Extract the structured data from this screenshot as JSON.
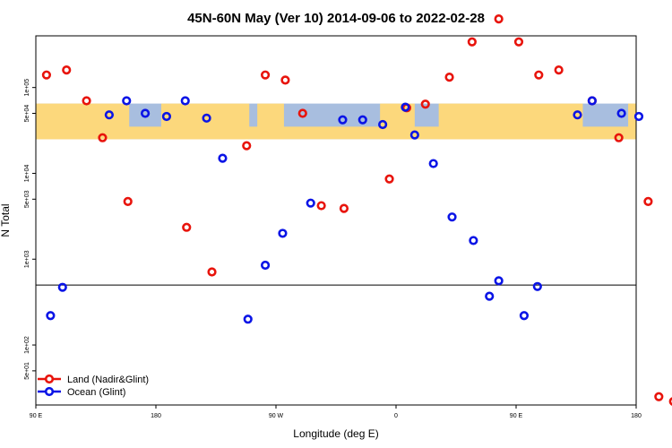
{
  "chart_data": {
    "type": "scatter",
    "title": "45N-60N May (Ver 10)   2014-09-06 to 2022-02-28",
    "xlabel": "Longitude (deg E)",
    "ylabel": "N Total",
    "x_ticks": [
      {
        "pos": 0,
        "label": "90 E"
      },
      {
        "pos": 90,
        "label": "180"
      },
      {
        "pos": 180,
        "label": "90 W"
      },
      {
        "pos": 270,
        "label": "0"
      },
      {
        "pos": 360,
        "label": "90 E"
      },
      {
        "pos": 450,
        "label": "180"
      }
    ],
    "y_ticks": [
      {
        "value": 50,
        "label": "5e+01"
      },
      {
        "value": 100,
        "label": "1e+02"
      },
      {
        "value": 1000,
        "label": "1e+03"
      },
      {
        "value": 5000,
        "label": "5e+03"
      },
      {
        "value": 10000,
        "label": "1e+04"
      },
      {
        "value": 50000,
        "label": "5e+04"
      },
      {
        "value": 100000,
        "label": "1e+05"
      }
    ],
    "xlim": [
      0,
      450
    ],
    "ylim": [
      20,
      400000
    ],
    "y_scale": "log",
    "reference_line": {
      "y": 500
    },
    "map_band": {
      "ylow": 25000,
      "yhigh": 65000
    },
    "legend_position": "bottom-left",
    "series": [
      {
        "name": "Land (Nadir&Glint)",
        "color": "#e8140c",
        "x": [
          8,
          23,
          38,
          50,
          69,
          113,
          132,
          158,
          172,
          187,
          200,
          214,
          231,
          265,
          278,
          292,
          310,
          327,
          347,
          362,
          377,
          392,
          417,
          437,
          459,
          467,
          478
        ],
        "y": [
          140000,
          160000,
          70000,
          26000,
          4700,
          2350,
          710,
          21000,
          140000,
          122000,
          50000,
          4200,
          3900,
          8600,
          58000,
          64000,
          132000,
          340000,
          630000,
          340000,
          140000,
          160000,
          70000,
          26000,
          4700,
          25,
          22
        ]
      },
      {
        "name": "Ocean (Glint)",
        "color": "#0a14e6",
        "x": [
          11,
          20,
          55,
          68,
          82,
          98,
          112,
          128,
          140,
          159,
          172,
          185,
          206,
          230,
          245,
          260,
          277,
          284,
          298,
          312,
          328,
          340,
          347,
          366,
          376,
          406,
          417,
          439,
          452
        ],
        "y": [
          220,
          470,
          48000,
          70000,
          50000,
          46000,
          70000,
          44000,
          15000,
          200,
          850,
          2000,
          4500,
          42000,
          42000,
          37000,
          59000,
          28000,
          13000,
          3100,
          1650,
          370,
          560,
          220,
          480,
          48000,
          70000,
          50000,
          46000
        ]
      }
    ]
  }
}
